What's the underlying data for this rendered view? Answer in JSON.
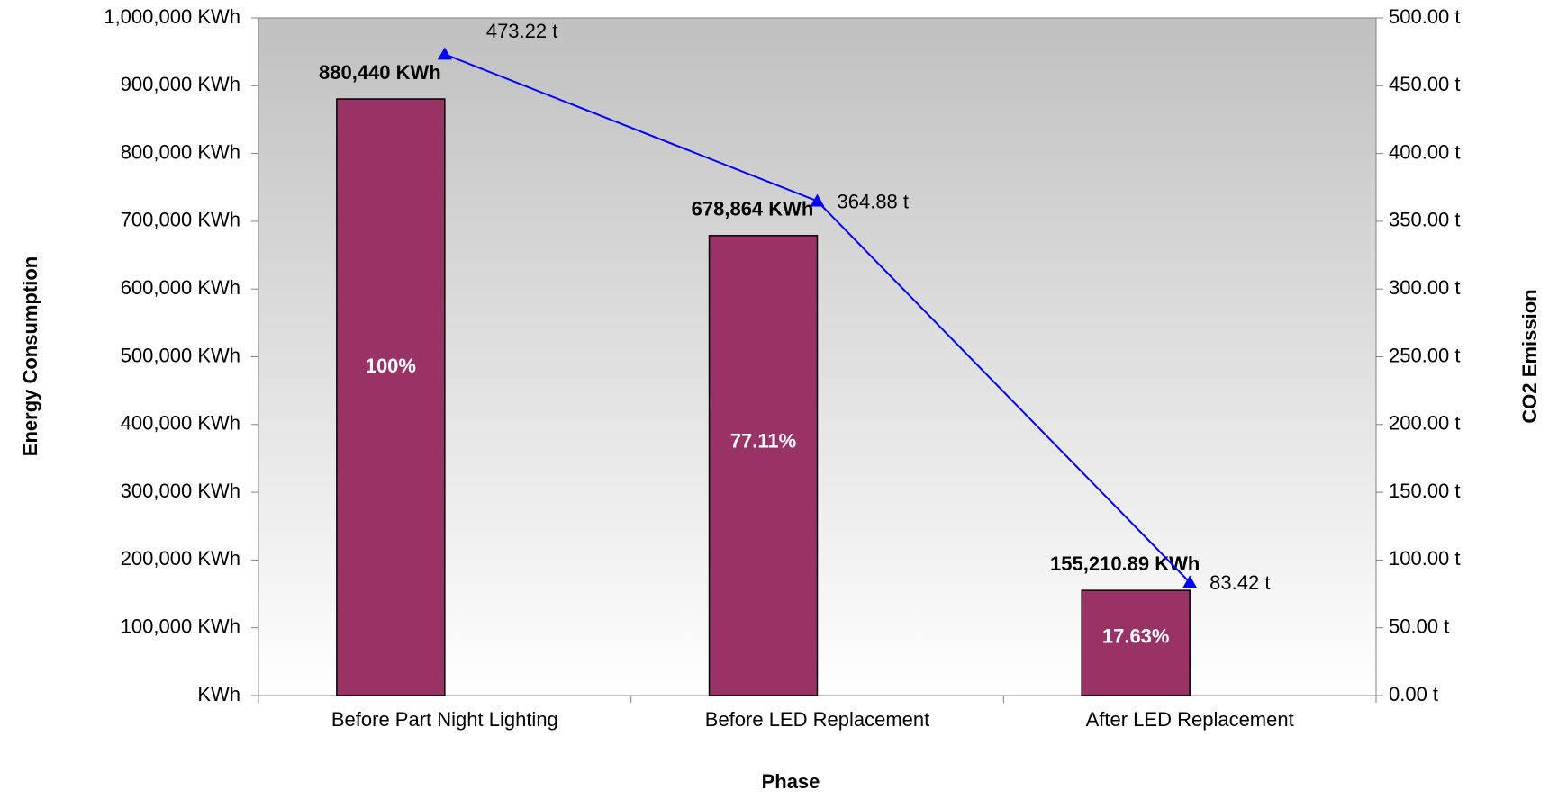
{
  "chart_data": {
    "type": "bar",
    "x_label": "Phase",
    "y_label": "Energy Consumption",
    "y2_label": "CO2 Emission",
    "categories": [
      "Before Part Night Lighting",
      "Before LED Replacement",
      "After LED Replacement"
    ],
    "series": [
      {
        "name": "Energy Consumption",
        "type": "bar",
        "color": "#993366",
        "values": [
          880440,
          678864,
          155210.89
        ],
        "value_labels": [
          "880,440 KWh",
          "678,864 KWh",
          "155,210.89 KWh"
        ],
        "percent_labels": [
          "100%",
          "77.11%",
          "17.63%"
        ]
      },
      {
        "name": "CO2 Emission",
        "type": "line",
        "color": "#0000ff",
        "axis": "y2",
        "values": [
          473.22,
          364.88,
          83.42
        ],
        "value_labels": [
          "473.22 t",
          "364.88 t",
          "83.42 t"
        ]
      }
    ],
    "ylim": [
      0,
      1000000
    ],
    "yticks": [
      {
        "value": 0,
        "label": "KWh"
      },
      {
        "value": 100000,
        "label": "100,000 KWh"
      },
      {
        "value": 200000,
        "label": "200,000 KWh"
      },
      {
        "value": 300000,
        "label": "300,000 KWh"
      },
      {
        "value": 400000,
        "label": "400,000 KWh"
      },
      {
        "value": 500000,
        "label": "500,000 KWh"
      },
      {
        "value": 600000,
        "label": "600,000 KWh"
      },
      {
        "value": 700000,
        "label": "700,000 KWh"
      },
      {
        "value": 800000,
        "label": "800,000 KWh"
      },
      {
        "value": 900000,
        "label": "900,000 KWh"
      },
      {
        "value": 1000000,
        "label": "1,000,000 KWh"
      }
    ],
    "y2lim": [
      0,
      500
    ],
    "y2ticks": [
      {
        "value": 0,
        "label": "0.00 t"
      },
      {
        "value": 50,
        "label": "50.00 t"
      },
      {
        "value": 100,
        "label": "100.00 t"
      },
      {
        "value": 150,
        "label": "150.00 t"
      },
      {
        "value": 200,
        "label": "200.00 t"
      },
      {
        "value": 250,
        "label": "250.00 t"
      },
      {
        "value": 300,
        "label": "300.00 t"
      },
      {
        "value": 350,
        "label": "350.00 t"
      },
      {
        "value": 400,
        "label": "400.00 t"
      },
      {
        "value": 450,
        "label": "450.00 t"
      },
      {
        "value": 500,
        "label": "500.00 t"
      }
    ]
  }
}
